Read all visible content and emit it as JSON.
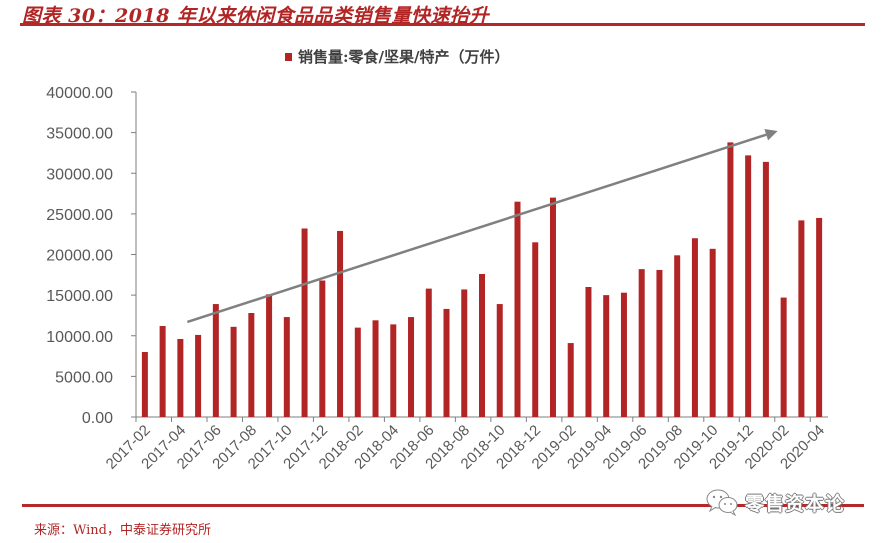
{
  "header": {
    "title": "图表 30：2018 年以来休闲食品品类销售量快速抬升"
  },
  "legend": {
    "label": "销售量:零食/坚果/特产（万件）"
  },
  "footer": {
    "source": "来源：Wind，中泰证券研究所",
    "watermark": "零售资本论",
    "watermark_icon": "wechat-icon"
  },
  "colors": {
    "bar": "#b22525",
    "accent_rule": "#b5282a",
    "trend_arrow": "#808080",
    "axis": "#7f7f7f",
    "tick_text": "#595959"
  },
  "chart_data": {
    "type": "bar",
    "title": "图表 30：2018 年以来休闲食品品类销售量快速抬升",
    "xlabel": "",
    "ylabel": "",
    "ylim": [
      0,
      40000
    ],
    "yticks": [
      "0.00",
      "5000.00",
      "10000.00",
      "15000.00",
      "20000.00",
      "25000.00",
      "30000.00",
      "35000.00",
      "40000.00"
    ],
    "grid": false,
    "legend_position": "top",
    "xtick_labels": [
      "2017-02",
      "2017-04",
      "2017-06",
      "2017-08",
      "2017-10",
      "2017-12",
      "2018-02",
      "2018-04",
      "2018-06",
      "2018-08",
      "2018-10",
      "2018-12",
      "2019-02",
      "2019-04",
      "2019-06",
      "2019-08",
      "2019-10",
      "2019-12",
      "2020-02",
      "2020-04"
    ],
    "categories": [
      "2017-02",
      "2017-03",
      "2017-04",
      "2017-05",
      "2017-06",
      "2017-07",
      "2017-08",
      "2017-09",
      "2017-10",
      "2017-11",
      "2017-12",
      "2018-01",
      "2018-02",
      "2018-03",
      "2018-04",
      "2018-05",
      "2018-06",
      "2018-07",
      "2018-08",
      "2018-09",
      "2018-10",
      "2018-11",
      "2018-12",
      "2019-01",
      "2019-02",
      "2019-03",
      "2019-04",
      "2019-05",
      "2019-06",
      "2019-07",
      "2019-08",
      "2019-09",
      "2019-10",
      "2019-11",
      "2019-12",
      "2020-01",
      "2020-02",
      "2020-03",
      "2020-04"
    ],
    "series": [
      {
        "name": "销售量:零食/坚果/特产（万件）",
        "values": [
          8000,
          11200,
          9600,
          10100,
          13900,
          11100,
          12800,
          15100,
          12300,
          23200,
          16800,
          22900,
          11000,
          11900,
          11400,
          12300,
          15800,
          13300,
          15700,
          17600,
          13900,
          26500,
          21500,
          27000,
          9100,
          16000,
          15000,
          15300,
          18200,
          18100,
          19900,
          22000,
          20700,
          33800,
          32200,
          31400,
          14700,
          24200,
          24500
        ]
      }
    ],
    "annotations": [
      {
        "type": "trend-arrow",
        "description": "upward trend arrow",
        "from": {
          "category": "2017-04",
          "value": 11700
        },
        "to": {
          "category": "2020-02",
          "value": 35200
        }
      }
    ]
  }
}
